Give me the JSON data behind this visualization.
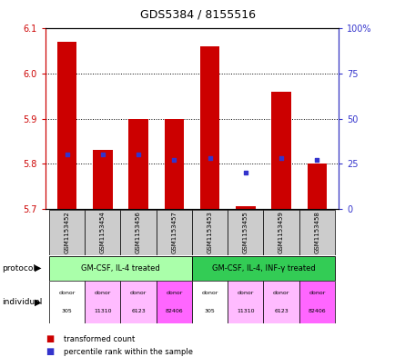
{
  "title": "GDS5384 / 8155516",
  "samples": [
    "GSM1153452",
    "GSM1153454",
    "GSM1153456",
    "GSM1153457",
    "GSM1153453",
    "GSM1153455",
    "GSM1153459",
    "GSM1153458"
  ],
  "red_values": [
    6.07,
    5.83,
    5.9,
    5.9,
    6.06,
    5.705,
    5.96,
    5.8
  ],
  "blue_values": [
    30,
    30,
    30,
    27,
    28,
    20,
    28,
    27
  ],
  "ylim_left": [
    5.7,
    6.1
  ],
  "ylim_right": [
    0,
    100
  ],
  "yticks_left": [
    5.7,
    5.8,
    5.9,
    6.0,
    6.1
  ],
  "yticks_right": [
    0,
    25,
    50,
    75,
    100
  ],
  "ytick_labels_right": [
    "0",
    "25",
    "50",
    "75",
    "100%"
  ],
  "bar_bottom": 5.7,
  "bar_width": 0.55,
  "red_color": "#cc0000",
  "blue_color": "#3333cc",
  "protocol_labels": [
    "GM-CSF, IL-4 treated",
    "GM-CSF, IL-4, INF-γ treated"
  ],
  "protocol_color1": "#aaffaa",
  "protocol_color2": "#33cc55",
  "individual_labels": [
    "donor\n305",
    "donor\n11310",
    "donor\n6123",
    "donor\n82406",
    "donor\n305",
    "donor\n11310",
    "donor\n6123",
    "donor\n82406"
  ],
  "individual_colors": [
    "#ffffff",
    "#ffbbff",
    "#ffbbff",
    "#ff66ff",
    "#ffffff",
    "#ffbbff",
    "#ffbbff",
    "#ff66ff"
  ],
  "sample_bg_color": "#cccccc",
  "legend_red_label": "transformed count",
  "legend_blue_label": "percentile rank within the sample",
  "left_axis_color": "#cc0000",
  "right_axis_color": "#3333cc"
}
